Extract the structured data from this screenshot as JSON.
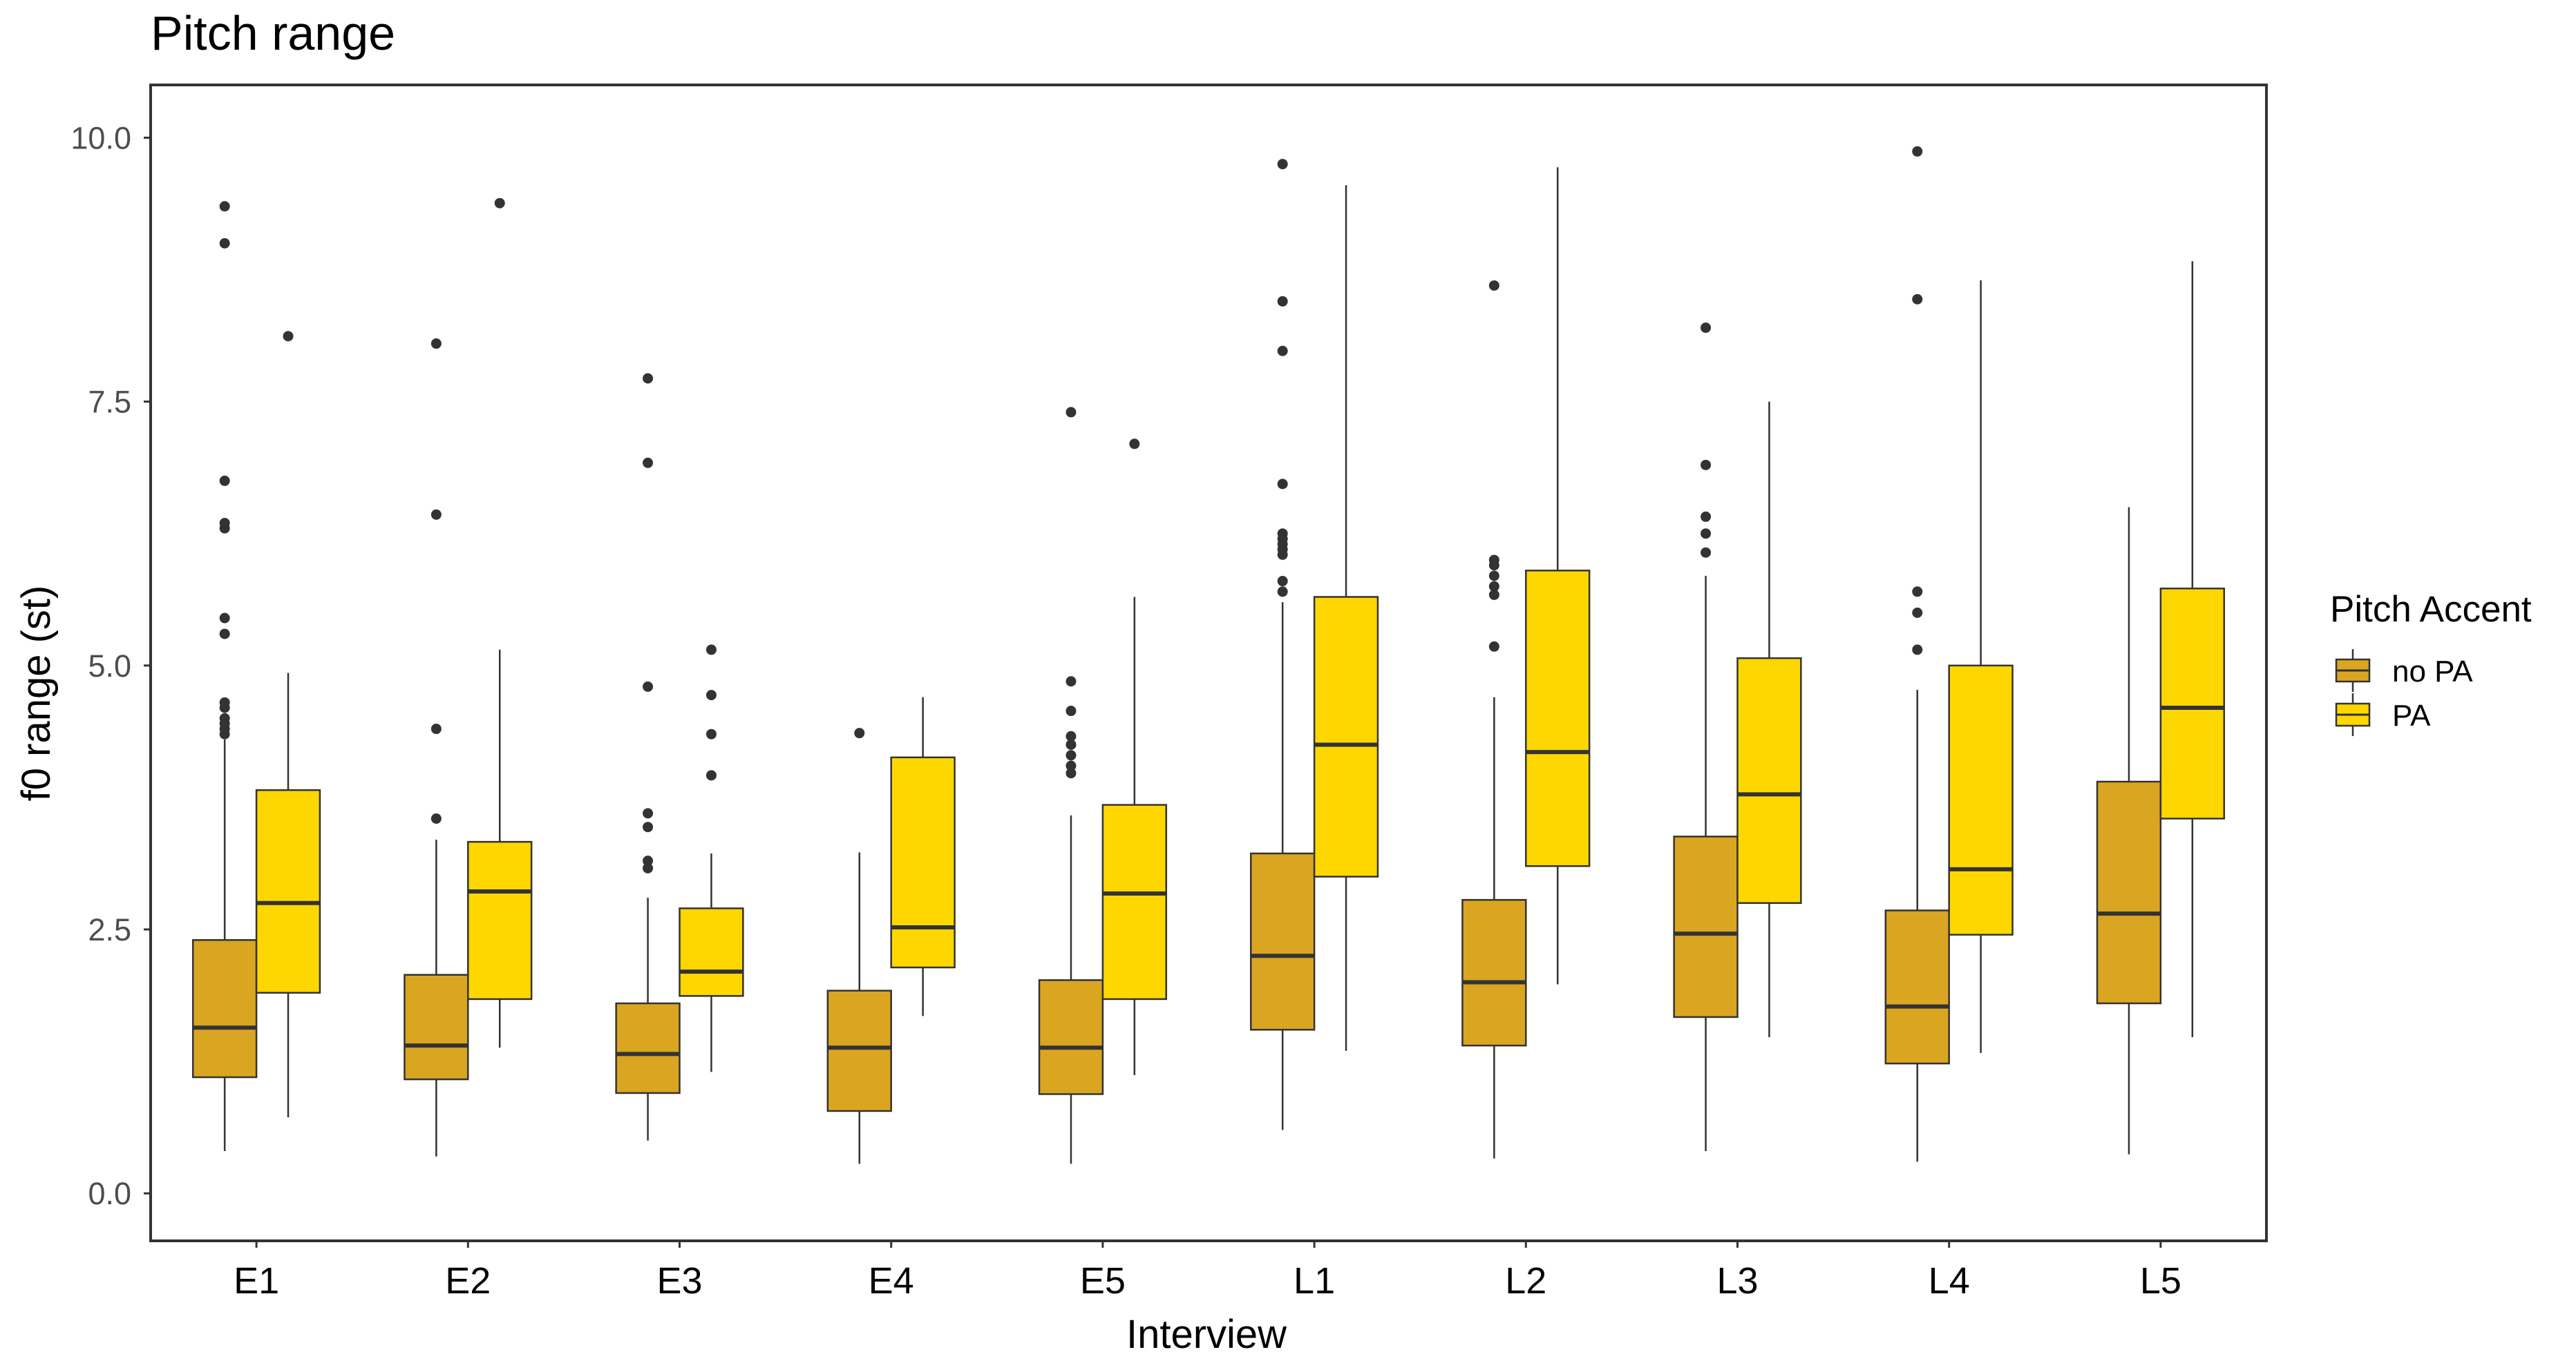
{
  "chart_data": {
    "type": "boxplot",
    "title": "Pitch range",
    "xlabel": "Interview",
    "ylabel": "f0 range (st)",
    "ylim": [
      -0.45,
      10.5
    ],
    "yticks": [
      0.0,
      2.5,
      5.0,
      7.5,
      10.0
    ],
    "ytick_labels": [
      "0.0",
      "2.5",
      "5.0",
      "7.5",
      "10.0"
    ],
    "grid": false,
    "legend_position": "right",
    "legend": {
      "title": "Pitch Accent",
      "entries": [
        {
          "label": "no PA",
          "color": "#DAA520"
        },
        {
          "label": "PA",
          "color": "#FFD700"
        }
      ]
    },
    "categories": [
      "E1",
      "E2",
      "E3",
      "E4",
      "E5",
      "L1",
      "L2",
      "L3",
      "L4",
      "L5"
    ],
    "series": [
      {
        "name": "no PA",
        "color": "#DAA520",
        "boxes": [
          {
            "min": 0.4,
            "q1": 1.1,
            "median": 1.57,
            "q3": 2.4,
            "max": 4.3,
            "outliers": [
              4.35,
              4.4,
              4.45,
              4.5,
              4.6,
              4.65,
              5.3,
              5.45,
              6.3,
              6.35,
              6.75,
              9.0,
              9.35
            ]
          },
          {
            "min": 0.35,
            "q1": 1.08,
            "median": 1.4,
            "q3": 2.07,
            "max": 3.35,
            "outliers": [
              3.55,
              4.4,
              6.43,
              8.05
            ]
          },
          {
            "min": 0.5,
            "q1": 0.95,
            "median": 1.32,
            "q3": 1.8,
            "max": 2.8,
            "outliers": [
              3.08,
              3.15,
              3.47,
              3.6,
              4.8,
              6.92,
              7.72
            ]
          },
          {
            "min": 0.28,
            "q1": 0.78,
            "median": 1.38,
            "q3": 1.92,
            "max": 3.23,
            "outliers": [
              4.36
            ]
          },
          {
            "min": 0.28,
            "q1": 0.94,
            "median": 1.38,
            "q3": 2.02,
            "max": 3.58,
            "outliers": [
              3.98,
              4.05,
              4.15,
              4.25,
              4.33,
              4.57,
              4.85,
              7.4
            ]
          },
          {
            "min": 0.6,
            "q1": 1.55,
            "median": 2.25,
            "q3": 3.22,
            "max": 5.6,
            "outliers": [
              5.7,
              5.8,
              6.05,
              6.1,
              6.15,
              6.2,
              6.25,
              6.72,
              7.98,
              8.45,
              9.75
            ]
          },
          {
            "min": 0.33,
            "q1": 1.4,
            "median": 2.0,
            "q3": 2.78,
            "max": 4.7,
            "outliers": [
              5.18,
              5.67,
              5.75,
              5.85,
              5.95,
              6.0,
              8.6
            ]
          },
          {
            "min": 0.4,
            "q1": 1.67,
            "median": 2.46,
            "q3": 3.38,
            "max": 5.85,
            "outliers": [
              6.07,
              6.25,
              6.41,
              6.9,
              8.2
            ]
          },
          {
            "min": 0.3,
            "q1": 1.23,
            "median": 1.77,
            "q3": 2.68,
            "max": 4.77,
            "outliers": [
              5.15,
              5.5,
              5.7,
              8.47,
              9.87
            ]
          },
          {
            "min": 0.37,
            "q1": 1.8,
            "median": 2.65,
            "q3": 3.9,
            "max": 6.5,
            "outliers": []
          }
        ]
      },
      {
        "name": "PA",
        "color": "#FFD700",
        "boxes": [
          {
            "min": 0.72,
            "q1": 1.9,
            "median": 2.75,
            "q3": 3.82,
            "max": 4.93,
            "outliers": [
              8.12
            ]
          },
          {
            "min": 1.38,
            "q1": 1.84,
            "median": 2.86,
            "q3": 3.33,
            "max": 5.15,
            "outliers": [
              9.38
            ]
          },
          {
            "min": 1.15,
            "q1": 1.87,
            "median": 2.1,
            "q3": 2.7,
            "max": 3.22,
            "outliers": [
              3.96,
              4.35,
              4.72,
              5.15
            ]
          },
          {
            "min": 1.68,
            "q1": 2.14,
            "median": 2.52,
            "q3": 4.13,
            "max": 4.7,
            "outliers": []
          },
          {
            "min": 1.12,
            "q1": 1.84,
            "median": 2.84,
            "q3": 3.68,
            "max": 5.65,
            "outliers": [
              7.1
            ]
          },
          {
            "min": 1.35,
            "q1": 3.0,
            "median": 4.25,
            "q3": 5.65,
            "max": 9.55,
            "outliers": []
          },
          {
            "min": 1.98,
            "q1": 3.1,
            "median": 4.18,
            "q3": 5.9,
            "max": 9.72,
            "outliers": []
          },
          {
            "min": 1.48,
            "q1": 2.75,
            "median": 3.78,
            "q3": 5.07,
            "max": 7.5,
            "outliers": []
          },
          {
            "min": 1.33,
            "q1": 2.45,
            "median": 3.07,
            "q3": 5.0,
            "max": 8.65,
            "outliers": []
          },
          {
            "min": 1.48,
            "q1": 3.55,
            "median": 4.6,
            "q3": 5.73,
            "max": 8.83,
            "outliers": []
          }
        ]
      }
    ]
  }
}
